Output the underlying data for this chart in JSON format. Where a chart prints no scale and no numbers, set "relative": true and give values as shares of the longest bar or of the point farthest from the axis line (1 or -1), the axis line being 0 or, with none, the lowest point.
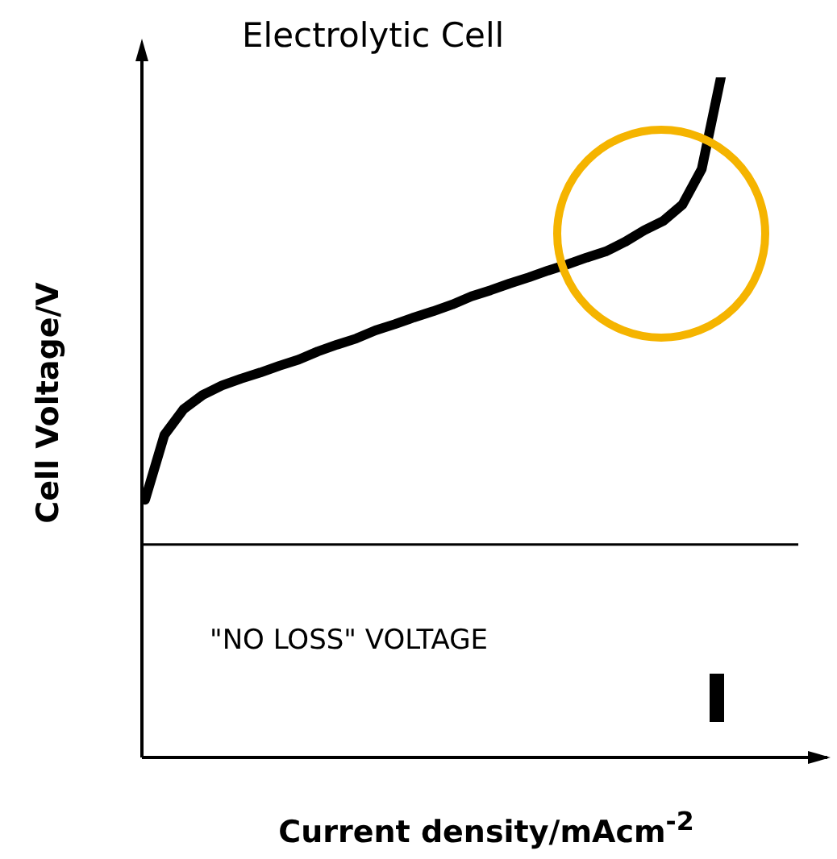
{
  "chart_data": {
    "type": "line",
    "title": "Electrolytic Cell",
    "xlabel": "Current density/mAcm$^{-2}$",
    "ylabel": "Cell Voltage/V",
    "relative": true,
    "categories": [
      null,
      null,
      null,
      null,
      null,
      null,
      null,
      null,
      null,
      null,
      null,
      null,
      null,
      null,
      null,
      null,
      null,
      null,
      null,
      null,
      null,
      null,
      null,
      null,
      null,
      null,
      null,
      null,
      null,
      null,
      null
    ],
    "series": [
      {
        "color": "#000000",
        "values": [
          0.379,
          0.474,
          0.512,
          0.533,
          0.547,
          0.557,
          0.566,
          0.576,
          0.585,
          0.597,
          0.607,
          0.616,
          0.628,
          0.637,
          0.647,
          0.656,
          0.666,
          0.678,
          0.687,
          0.697,
          0.706,
          0.716,
          0.725,
          0.735,
          0.744,
          0.758,
          0.775,
          0.789,
          0.813,
          0.865,
          1
        ]
      }
    ],
    "ref_lines": [
      {
        "axis": "y",
        "value": 0.313,
        "label": "\"NO LOSS\" VOLTAGE",
        "color": "#000000"
      }
    ],
    "marker": "none",
    "line_style": "solid"
  }
}
